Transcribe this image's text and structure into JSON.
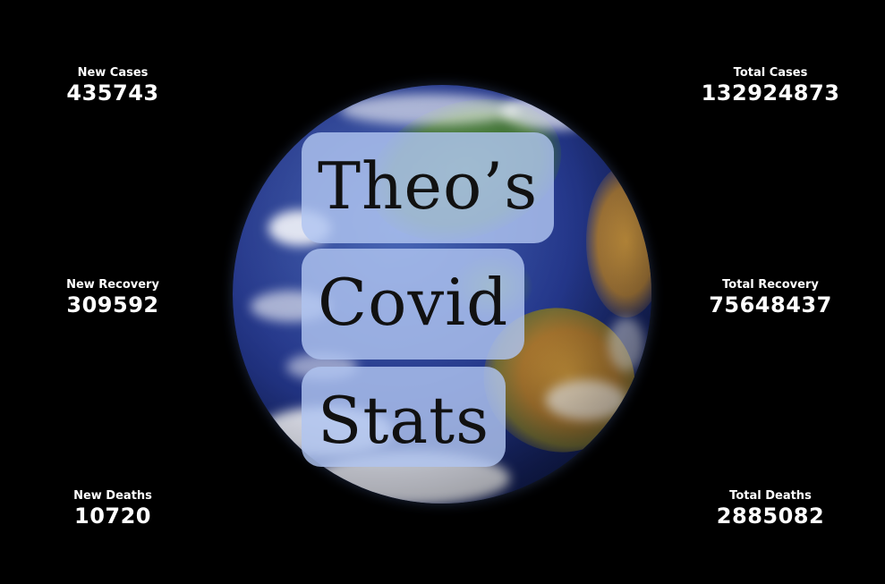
{
  "title": {
    "line1": "Theo’s",
    "line2": "Covid",
    "line3": "Stats"
  },
  "stats": {
    "new_cases": {
      "label": "New Cases",
      "value": "435743"
    },
    "total_cases": {
      "label": "Total Cases",
      "value": "132924873"
    },
    "new_recovery": {
      "label": "New Recovery",
      "value": "309592"
    },
    "total_recovery": {
      "label": "Total Recovery",
      "value": "75648437"
    },
    "new_deaths": {
      "label": "New Deaths",
      "value": "10720"
    },
    "total_deaths": {
      "label": "Total Deaths",
      "value": "2885082"
    }
  },
  "colors": {
    "background": "#000000",
    "text": "#ffffff",
    "title_highlight": "#b0c4f0",
    "title_text": "#111111"
  }
}
